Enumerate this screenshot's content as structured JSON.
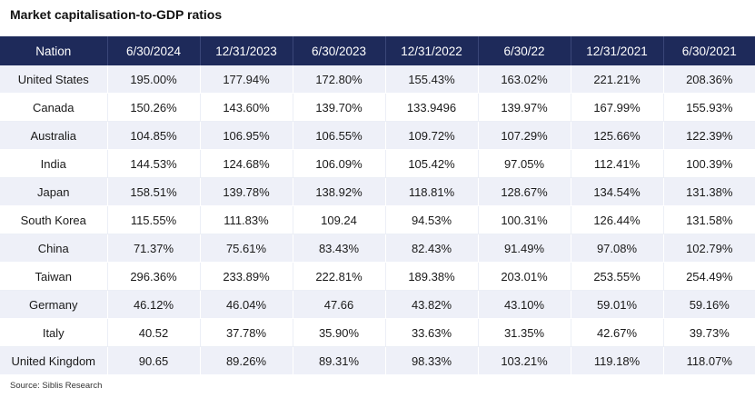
{
  "title": "Market capitalisation-to-GDP ratios",
  "source": "Source: Siblis Research",
  "table": {
    "headers": [
      "Nation",
      "6/30/2024",
      "12/31/2023",
      "6/30/2023",
      "12/31/2022",
      "6/30/22",
      "12/31/2021",
      "6/30/2021"
    ],
    "rows": [
      [
        "United States",
        "195.00%",
        "177.94%",
        "172.80%",
        "155.43%",
        "163.02%",
        "221.21%",
        "208.36%"
      ],
      [
        "Canada",
        "150.26%",
        "143.60%",
        "139.70%",
        "133.9496",
        "139.97%",
        "167.99%",
        "155.93%"
      ],
      [
        "Australia",
        "104.85%",
        "106.95%",
        "106.55%",
        "109.72%",
        "107.29%",
        "125.66%",
        "122.39%"
      ],
      [
        "India",
        "144.53%",
        "124.68%",
        "106.09%",
        "105.42%",
        "97.05%",
        "112.41%",
        "100.39%"
      ],
      [
        "Japan",
        "158.51%",
        "139.78%",
        "138.92%",
        "118.81%",
        "128.67%",
        "134.54%",
        "131.38%"
      ],
      [
        "South Korea",
        "115.55%",
        "111.83%",
        "109.24",
        "94.53%",
        "100.31%",
        "126.44%",
        "131.58%"
      ],
      [
        "China",
        "71.37%",
        "75.61%",
        "83.43%",
        "82.43%",
        "91.49%",
        "97.08%",
        "102.79%"
      ],
      [
        "Taiwan",
        "296.36%",
        "233.89%",
        "222.81%",
        "189.38%",
        "203.01%",
        "253.55%",
        "254.49%"
      ],
      [
        "Germany",
        "46.12%",
        "46.04%",
        "47.66",
        "43.82%",
        "43.10%",
        "59.01%",
        "59.16%"
      ],
      [
        "Italy",
        "40.52",
        "37.78%",
        "35.90%",
        "33.63%",
        "31.35%",
        "42.67%",
        "39.73%"
      ],
      [
        "United Kingdom",
        "90.65",
        "89.26%",
        "89.31%",
        "98.33%",
        "103.21%",
        "119.18%",
        "118.07%"
      ]
    ]
  }
}
